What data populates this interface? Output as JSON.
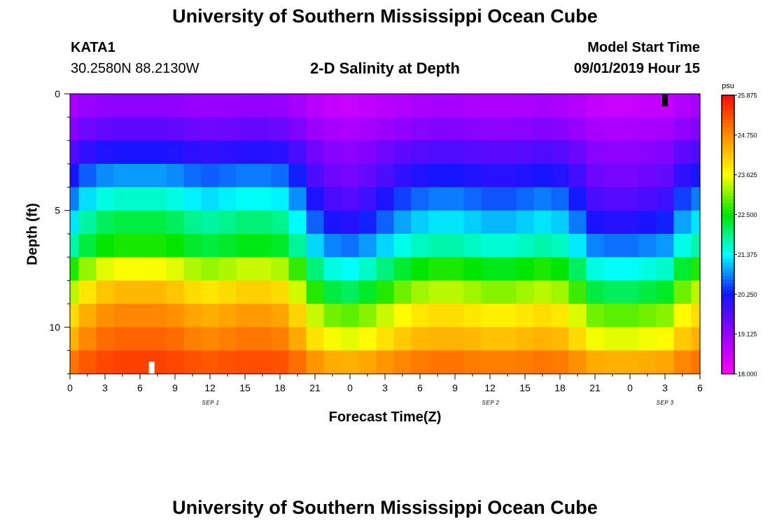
{
  "header": {
    "title": "University of Southern Mississippi Ocean Cube",
    "station": "KATA1",
    "coords": "30.2580N 88.2130W",
    "plot_title": "2-D Salinity at Depth",
    "model_label": "Model Start Time",
    "model_time": "09/01/2019 Hour 15"
  },
  "footer": {
    "title": "University of Southern Mississippi Ocean Cube"
  },
  "chart_data": {
    "type": "heatmap",
    "title": "2-D Salinity at Depth",
    "xlabel": "Forecast Time(Z)",
    "ylabel": "Depth (ft)",
    "x_tick_labels": [
      "0",
      "3",
      "6",
      "9",
      "12",
      "15",
      "18",
      "21",
      "0",
      "3",
      "6",
      "9",
      "12",
      "15",
      "18",
      "21",
      "0",
      "3",
      "6"
    ],
    "x_hours": [
      0,
      54
    ],
    "date_labels": [
      {
        "label": "SEP 1",
        "hour": 12
      },
      {
        "label": "SEP 2",
        "hour": 36
      },
      {
        "label": "SEP 3",
        "hour": 51
      }
    ],
    "y_ticks": [
      0,
      5,
      10
    ],
    "ylim": [
      0,
      12
    ],
    "depth_levels": 12,
    "colorbar": {
      "unit": "psu",
      "min": 18.0,
      "max": 25.875,
      "tick_labels": [
        "25.875",
        "24.750",
        "23.625",
        "22.500",
        "21.375",
        "20.250",
        "19.125",
        "18.000"
      ]
    },
    "markers": [
      {
        "color": "#000000",
        "hour": 51,
        "depth_row": 0
      },
      {
        "color": "#ffffff",
        "hour": 7,
        "depth_row": 11
      }
    ],
    "series_time_hours": [
      0,
      1.5,
      3,
      4.5,
      6,
      7.5,
      9,
      10.5,
      12,
      13.5,
      15,
      16.5,
      18,
      19.5,
      21,
      22.5,
      24,
      25.5,
      27,
      28.5,
      30,
      31.5,
      33,
      34.5,
      36,
      37.5,
      39,
      40.5,
      42,
      43.5,
      45,
      46.5,
      48,
      49.5,
      51,
      52.5,
      54
    ],
    "mix_factor_by_time": [
      0.45,
      0.2,
      0.05,
      0,
      0,
      0,
      0.05,
      0.15,
      0.2,
      0.15,
      0.1,
      0.1,
      0.15,
      0.4,
      0.75,
      0.95,
      1,
      0.9,
      0.75,
      0.6,
      0.5,
      0.45,
      0.45,
      0.5,
      0.55,
      0.55,
      0.5,
      0.45,
      0.5,
      0.7,
      0.95,
      1,
      1,
      0.95,
      0.9,
      0.6,
      0.45
    ],
    "salinity_profile": {
      "stratified_psu": [
        19.2,
        19.6,
        20.2,
        20.9,
        21.6,
        22.2,
        22.6,
        23.6,
        24.3,
        24.8,
        25.1,
        25.4
      ],
      "mixed_psu": [
        18.6,
        18.9,
        19.2,
        19.4,
        19.7,
        20.1,
        20.7,
        21.4,
        22.1,
        22.9,
        23.5,
        24.4
      ]
    }
  }
}
